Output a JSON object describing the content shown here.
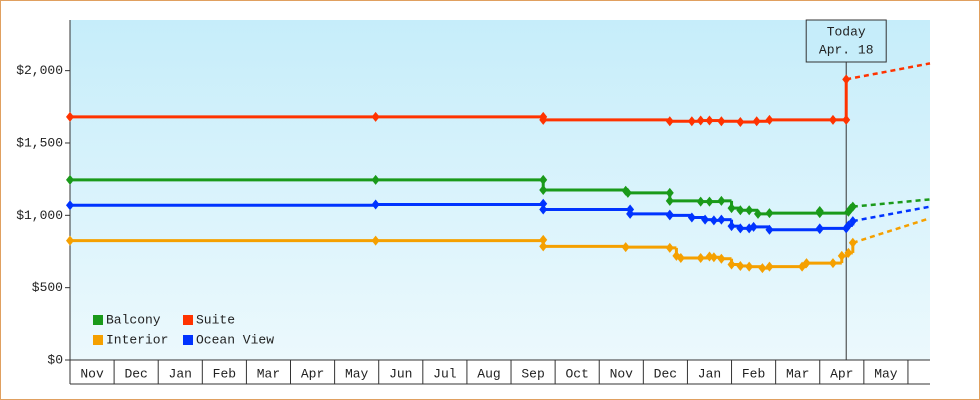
{
  "chart_data": {
    "type": "step-line",
    "categories": [
      "Nov",
      "Dec",
      "Jan",
      "Feb",
      "Mar",
      "Apr",
      "May",
      "Jun",
      "Jul",
      "Aug",
      "Sep",
      "Oct",
      "Nov",
      "Dec",
      "Jan",
      "Feb",
      "Mar",
      "Apr",
      "May"
    ],
    "xlim": [
      0,
      19.5
    ],
    "ylim": [
      0,
      2350
    ],
    "yticks": [
      {
        "value": 0,
        "label": "$0"
      },
      {
        "value": 500,
        "label": "$500"
      },
      {
        "value": 1000,
        "label": "$1,000"
      },
      {
        "value": 1500,
        "label": "$1,500"
      },
      {
        "value": 2000,
        "label": "$2,000"
      }
    ],
    "legend": "lower-left",
    "annotation": {
      "x": 17.6,
      "lines": [
        "Today",
        "Apr. 18"
      ]
    },
    "series": [
      {
        "name": "Balcony",
        "color": "#1a9a1a",
        "x": [
          0,
          6.93,
          10.73,
          10.73,
          12.6,
          12.65,
          13.6,
          13.6,
          14.3,
          14.5,
          14.77,
          15.0,
          15.2,
          15.4,
          15.6,
          15.86,
          17.0,
          17.0,
          17.65,
          17.7,
          17.75
        ],
        "values": [
          1245,
          1245,
          1245,
          1175,
          1170,
          1155,
          1155,
          1100,
          1095,
          1095,
          1100,
          1050,
          1035,
          1035,
          1010,
          1015,
          1030,
          1015,
          1025,
          1045,
          1060
        ],
        "projection": {
          "x": [
            19.5
          ],
          "values": [
            1110
          ]
        }
      },
      {
        "name": "Suite",
        "color": "#ff3300",
        "x": [
          0,
          6.93,
          10.73,
          10.73,
          13.6,
          14.1,
          14.3,
          14.5,
          14.77,
          15.2,
          15.57,
          15.86,
          17.3,
          17.6,
          17.6
        ],
        "values": [
          1680,
          1680,
          1680,
          1660,
          1650,
          1650,
          1655,
          1655,
          1650,
          1645,
          1650,
          1660,
          1660,
          1660,
          1940
        ],
        "projection": {
          "x": [
            19.5
          ],
          "values": [
            2050
          ]
        }
      },
      {
        "name": "Interior",
        "color": "#f5a000",
        "x": [
          0,
          6.93,
          10.73,
          10.73,
          12.6,
          13.6,
          13.75,
          13.85,
          14.3,
          14.5,
          14.6,
          14.77,
          15.0,
          15.2,
          15.4,
          15.7,
          15.86,
          16.6,
          16.7,
          17.3,
          17.5,
          17.65,
          17.75
        ],
        "values": [
          825,
          825,
          830,
          785,
          780,
          775,
          720,
          705,
          705,
          715,
          710,
          700,
          660,
          650,
          645,
          635,
          645,
          645,
          670,
          670,
          720,
          740,
          810
        ],
        "projection": {
          "x": [
            19.5
          ],
          "values": [
            980
          ]
        }
      },
      {
        "name": "Ocean View",
        "color": "#0033ff",
        "x": [
          0,
          6.93,
          10.73,
          10.73,
          12.7,
          12.7,
          13.6,
          13.6,
          14.1,
          14.4,
          14.6,
          14.77,
          15.0,
          15.2,
          15.4,
          15.5,
          15.86,
          17.0,
          17.0,
          17.6,
          17.65,
          17.75
        ],
        "values": [
          1070,
          1075,
          1080,
          1040,
          1040,
          1010,
          1005,
          1000,
          985,
          970,
          965,
          970,
          925,
          910,
          910,
          920,
          900,
          905,
          910,
          910,
          930,
          960
        ],
        "projection": {
          "x": [
            19.5
          ],
          "values": [
            1060
          ]
        }
      }
    ]
  }
}
